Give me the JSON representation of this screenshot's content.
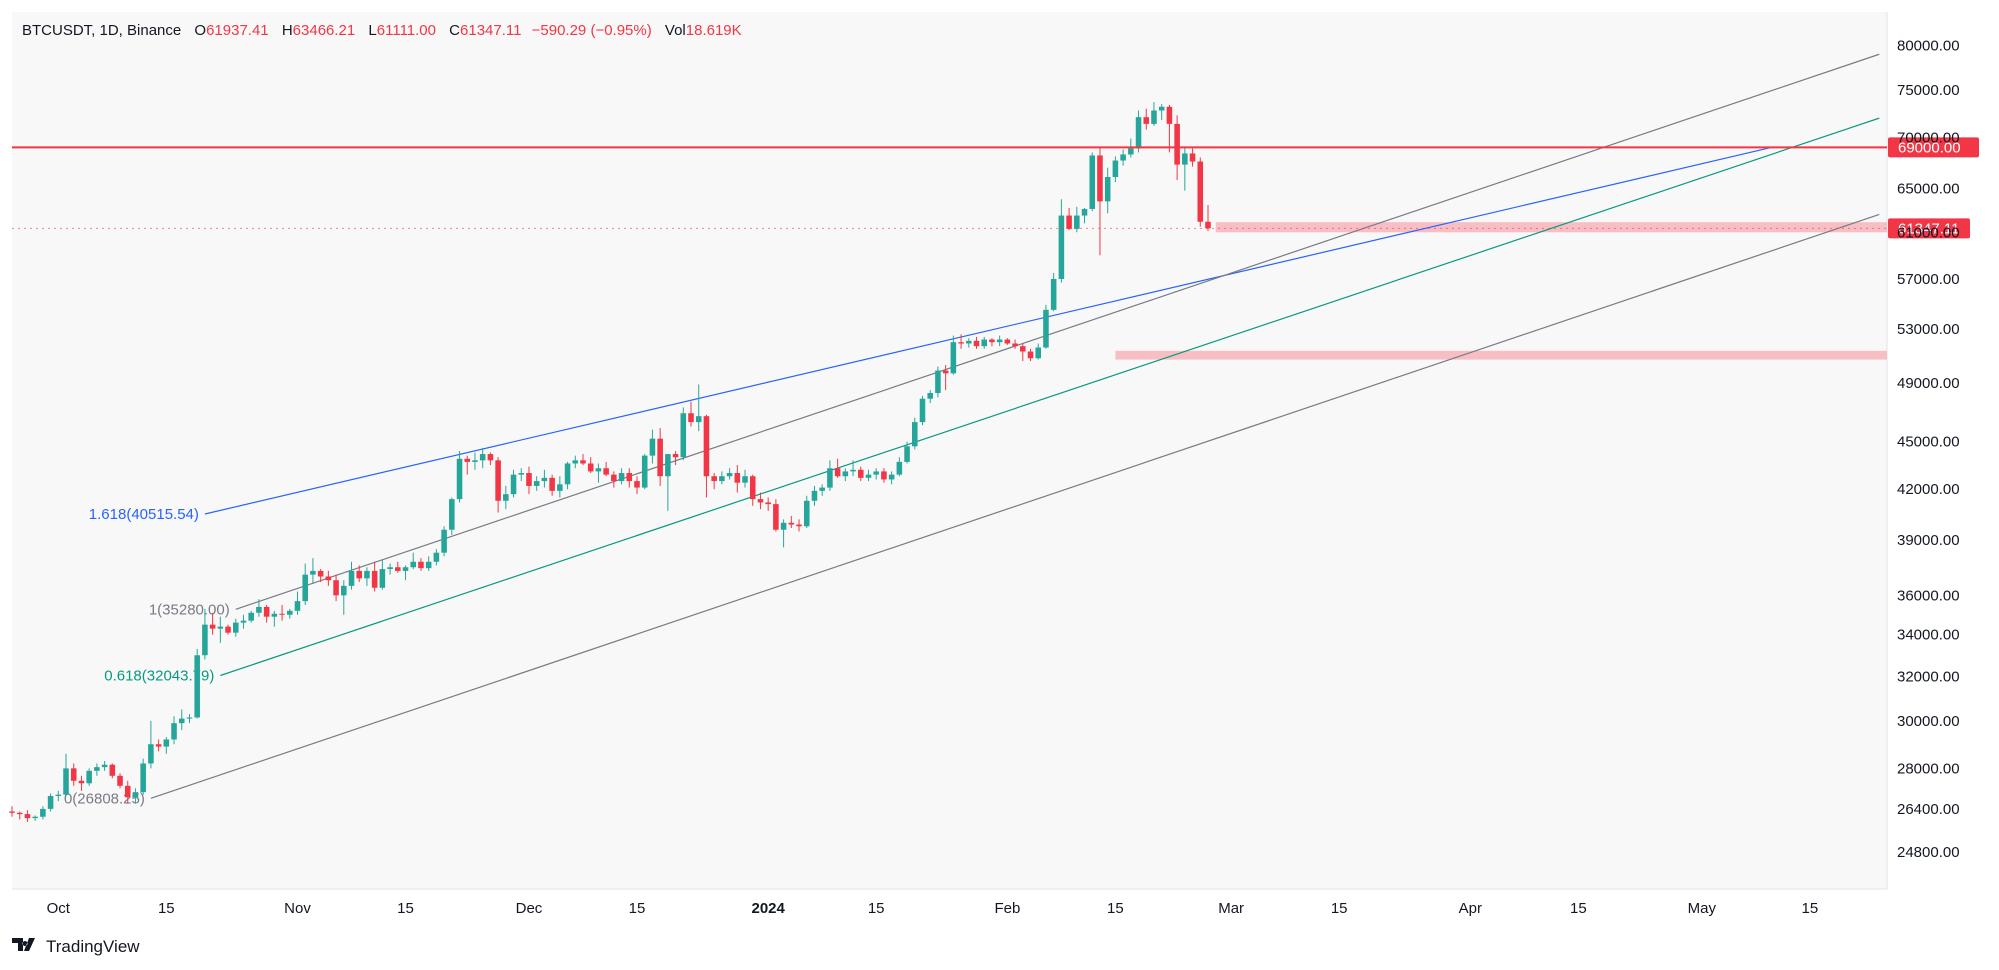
{
  "legend": {
    "symbol": "BTCUSDT, 1D, Binance",
    "open_label": "O",
    "open": "61937.41",
    "high_label": "H",
    "high": "63466.21",
    "low_label": "L",
    "low": "61111.00",
    "close_label": "C",
    "close": "61347.11",
    "change": "−590.29 (−0.95%)",
    "vol_label": "Vol",
    "vol": "18.619K"
  },
  "brand": {
    "name": "TradingView"
  },
  "colors": {
    "up": "#26a69a",
    "down": "#f23645",
    "fib_blue": "#2962ff",
    "fib_green": "#089981",
    "fib_gray": "#787b86"
  },
  "chart_data": {
    "type": "candlestick",
    "scale": "log",
    "ylim": [
      23500,
      84000
    ],
    "xlim": [
      "2023-09-25",
      "2024-05-25"
    ],
    "y_ticks": [
      "80000.00",
      "75000.00",
      "70000.00",
      "65000.00",
      "61000.00",
      "57000.00",
      "53000.00",
      "49000.00",
      "45000.00",
      "42000.00",
      "39000.00",
      "36000.00",
      "34000.00",
      "32000.00",
      "30000.00",
      "28000.00",
      "26400.00",
      "24800.00"
    ],
    "x_ticks": [
      {
        "date": "2023-10-01",
        "label": "Oct",
        "bold": false
      },
      {
        "date": "2023-10-15",
        "label": "15",
        "bold": false
      },
      {
        "date": "2023-11-01",
        "label": "Nov",
        "bold": false
      },
      {
        "date": "2023-11-15",
        "label": "15",
        "bold": false
      },
      {
        "date": "2023-12-01",
        "label": "Dec",
        "bold": false
      },
      {
        "date": "2023-12-15",
        "label": "15",
        "bold": false
      },
      {
        "date": "2024-01-01",
        "label": "2024",
        "bold": true
      },
      {
        "date": "2024-01-15",
        "label": "15",
        "bold": false
      },
      {
        "date": "2024-02-01",
        "label": "Feb",
        "bold": false
      },
      {
        "date": "2024-02-15",
        "label": "15",
        "bold": false
      },
      {
        "date": "2024-03-01",
        "label": "Mar",
        "bold": false
      },
      {
        "date": "2024-03-15",
        "label": "15",
        "bold": false
      },
      {
        "date": "2024-04-01",
        "label": "Apr",
        "bold": false
      },
      {
        "date": "2024-04-15",
        "label": "15",
        "bold": false
      },
      {
        "date": "2024-05-01",
        "label": "May",
        "bold": false
      },
      {
        "date": "2024-05-15",
        "label": "15",
        "bold": false
      }
    ],
    "candles_start": "2023-09-25",
    "candles": [
      [
        26300,
        26500,
        26100,
        26250
      ],
      [
        26250,
        26300,
        26000,
        26200
      ],
      [
        26200,
        26350,
        25900,
        26050
      ],
      [
        26050,
        26150,
        25950,
        26100
      ],
      [
        26100,
        26500,
        26000,
        26400
      ],
      [
        26400,
        27000,
        26300,
        26900
      ],
      [
        26900,
        27100,
        26700,
        26950
      ],
      [
        26950,
        28600,
        26900,
        28000
      ],
      [
        28000,
        28200,
        27300,
        27500
      ],
      [
        27500,
        27700,
        27100,
        27400
      ],
      [
        27400,
        28000,
        27300,
        27900
      ],
      [
        27900,
        28200,
        27700,
        28050
      ],
      [
        28050,
        28300,
        27900,
        28150
      ],
      [
        28150,
        28200,
        27600,
        27700
      ],
      [
        27700,
        27800,
        27200,
        27300
      ],
      [
        27300,
        27500,
        26600,
        26850
      ],
      [
        26850,
        27200,
        26600,
        27050
      ],
      [
        27050,
        28400,
        26950,
        28200
      ],
      [
        28200,
        30000,
        28000,
        29000
      ],
      [
        29000,
        29200,
        28700,
        28900
      ],
      [
        28900,
        29300,
        28600,
        29200
      ],
      [
        29200,
        30200,
        29000,
        29900
      ],
      [
        29900,
        30500,
        29600,
        30100
      ],
      [
        30100,
        30300,
        29900,
        30150
      ],
      [
        30150,
        33300,
        30100,
        33000
      ],
      [
        33000,
        35300,
        32800,
        34500
      ],
      [
        34500,
        35100,
        34000,
        34300
      ],
      [
        34300,
        34900,
        33600,
        34400
      ],
      [
        34400,
        34500,
        34000,
        34100
      ],
      [
        34100,
        34800,
        33900,
        34600
      ],
      [
        34600,
        35000,
        34300,
        34700
      ],
      [
        34700,
        35200,
        34600,
        35100
      ],
      [
        35100,
        35800,
        34900,
        35400
      ],
      [
        35400,
        35500,
        34600,
        34900
      ],
      [
        34900,
        35200,
        34400,
        35050
      ],
      [
        35050,
        35500,
        34700,
        35000
      ],
      [
        35000,
        35300,
        34800,
        35200
      ],
      [
        35200,
        36200,
        35000,
        35700
      ],
      [
        35700,
        37700,
        35500,
        37100
      ],
      [
        37100,
        38000,
        36600,
        37300
      ],
      [
        37300,
        37400,
        36700,
        37000
      ],
      [
        37000,
        37300,
        36500,
        36800
      ],
      [
        36800,
        37100,
        35700,
        36000
      ],
      [
        36000,
        36800,
        35000,
        36500
      ],
      [
        36500,
        37800,
        36300,
        37300
      ],
      [
        37300,
        37600,
        36700,
        36900
      ],
      [
        36900,
        37500,
        36500,
        37300
      ],
      [
        37300,
        37800,
        36200,
        36400
      ],
      [
        36400,
        37900,
        36300,
        37400
      ],
      [
        37400,
        37700,
        37100,
        37500
      ],
      [
        37500,
        37800,
        37200,
        37300
      ],
      [
        37300,
        37600,
        36800,
        37500
      ],
      [
        37500,
        38300,
        37400,
        37800
      ],
      [
        37800,
        38000,
        37300,
        37450
      ],
      [
        37450,
        38100,
        37300,
        37800
      ],
      [
        37800,
        38500,
        37600,
        38300
      ],
      [
        38300,
        39800,
        38100,
        39600
      ],
      [
        39600,
        41500,
        39300,
        41400
      ],
      [
        41400,
        44400,
        41200,
        43900
      ],
      [
        43900,
        44100,
        42900,
        43700
      ],
      [
        43700,
        44300,
        43200,
        43800
      ],
      [
        43800,
        44600,
        43300,
        44200
      ],
      [
        44200,
        44300,
        43500,
        43800
      ],
      [
        43800,
        44000,
        40600,
        41300
      ],
      [
        41300,
        42200,
        40800,
        41700
      ],
      [
        41700,
        43200,
        41500,
        42900
      ],
      [
        42900,
        43300,
        42500,
        43000
      ],
      [
        43000,
        43400,
        41700,
        42200
      ],
      [
        42200,
        42800,
        41900,
        42500
      ],
      [
        42500,
        43200,
        42100,
        42700
      ],
      [
        42700,
        42900,
        41600,
        41900
      ],
      [
        41900,
        42800,
        41500,
        42300
      ],
      [
        42300,
        43700,
        42000,
        43600
      ],
      [
        43600,
        44100,
        43300,
        43800
      ],
      [
        43800,
        44200,
        43500,
        43600
      ],
      [
        43600,
        44000,
        43000,
        43100
      ],
      [
        43100,
        43600,
        42400,
        43300
      ],
      [
        43300,
        43700,
        42800,
        42900
      ],
      [
        42900,
        43100,
        42100,
        42500
      ],
      [
        42500,
        43300,
        42300,
        43000
      ],
      [
        43000,
        43300,
        42100,
        42500
      ],
      [
        42500,
        42800,
        41700,
        42100
      ],
      [
        42100,
        44200,
        42000,
        44100
      ],
      [
        44100,
        45800,
        43600,
        45200
      ],
      [
        45200,
        45900,
        42200,
        42800
      ],
      [
        42800,
        44200,
        40700,
        44200
      ],
      [
        44200,
        44400,
        43500,
        44000
      ],
      [
        44000,
        47300,
        43800,
        46900
      ],
      [
        46900,
        47700,
        46000,
        46300
      ],
      [
        46300,
        48900,
        45700,
        46700
      ],
      [
        46700,
        46800,
        41500,
        42800
      ],
      [
        42800,
        43000,
        42000,
        42500
      ],
      [
        42500,
        43100,
        42300,
        42800
      ],
      [
        42800,
        43300,
        42600,
        43000
      ],
      [
        43000,
        43500,
        41800,
        42400
      ],
      [
        42400,
        43200,
        42100,
        42800
      ],
      [
        42800,
        42900,
        41000,
        41400
      ],
      [
        41400,
        41800,
        40800,
        41200
      ],
      [
        41200,
        41500,
        40700,
        41100
      ],
      [
        41100,
        41400,
        39500,
        39600
      ],
      [
        39600,
        40200,
        38600,
        40000
      ],
      [
        40000,
        40400,
        39700,
        39900
      ],
      [
        39900,
        40200,
        39500,
        39800
      ],
      [
        39800,
        41600,
        39700,
        41300
      ],
      [
        41300,
        42200,
        41000,
        41900
      ],
      [
        41900,
        42300,
        41600,
        42100
      ],
      [
        42100,
        43800,
        41900,
        43300
      ],
      [
        43300,
        43900,
        42700,
        42800
      ],
      [
        42800,
        43300,
        42500,
        43100
      ],
      [
        43100,
        43800,
        42800,
        43200
      ],
      [
        43200,
        43400,
        42500,
        42700
      ],
      [
        42700,
        43200,
        42500,
        42900
      ],
      [
        42900,
        43300,
        42600,
        43100
      ],
      [
        43100,
        43300,
        42400,
        42600
      ],
      [
        42600,
        43100,
        42300,
        42900
      ],
      [
        42900,
        44000,
        42800,
        43700
      ],
      [
        43700,
        45000,
        43600,
        44700
      ],
      [
        44700,
        46600,
        44500,
        46300
      ],
      [
        46300,
        48100,
        46100,
        47900
      ],
      [
        47900,
        48500,
        47600,
        48300
      ],
      [
        48300,
        50200,
        48000,
        49900
      ],
      [
        49900,
        50300,
        48500,
        49700
      ],
      [
        49700,
        52500,
        49600,
        52000
      ],
      [
        52000,
        52600,
        51500,
        51900
      ],
      [
        51900,
        52300,
        51600,
        52100
      ],
      [
        52100,
        52400,
        51500,
        51700
      ],
      [
        51700,
        52400,
        51500,
        52200
      ],
      [
        52200,
        52300,
        51700,
        52000
      ],
      [
        52000,
        52500,
        51700,
        52200
      ],
      [
        52200,
        52300,
        51800,
        51900
      ],
      [
        51900,
        52200,
        51500,
        51700
      ],
      [
        51700,
        51900,
        50600,
        51300
      ],
      [
        51300,
        51500,
        50600,
        50800
      ],
      [
        50800,
        51900,
        50700,
        51600
      ],
      [
        51600,
        54900,
        51500,
        54500
      ],
      [
        54500,
        57500,
        54400,
        57000
      ],
      [
        57000,
        64000,
        56700,
        62500
      ],
      [
        62500,
        63200,
        61200,
        61300
      ],
      [
        61300,
        63300,
        61000,
        62500
      ],
      [
        62500,
        63200,
        61800,
        63100
      ],
      [
        63100,
        68500,
        62900,
        68200
      ],
      [
        68200,
        69000,
        59000,
        63800
      ],
      [
        63800,
        67000,
        62700,
        66100
      ],
      [
        66100,
        68100,
        65600,
        67700
      ],
      [
        67700,
        68800,
        67200,
        68300
      ],
      [
        68300,
        69900,
        68000,
        68900
      ],
      [
        68900,
        72800,
        68500,
        72100
      ],
      [
        72100,
        73000,
        70800,
        71400
      ],
      [
        71400,
        73700,
        71200,
        72800
      ],
      [
        72800,
        73500,
        71800,
        73200
      ],
      [
        73200,
        73400,
        68500,
        71400
      ],
      [
        71400,
        72300,
        65800,
        67300
      ],
      [
        67300,
        69000,
        64800,
        68400
      ],
      [
        68400,
        68900,
        67100,
        67600
      ],
      [
        67600,
        68000,
        61500,
        61937
      ],
      [
        61937,
        63466,
        61111,
        61347
      ]
    ],
    "lines": [
      {
        "kind": "fib_extension",
        "label": "1.618(40515.54)",
        "start": [
          "2023-10-20",
          40515.54
        ],
        "end": [
          "2024-05-10",
          69000
        ],
        "color": "blue"
      },
      {
        "kind": "fib_level",
        "label": "1(35280.00)",
        "start": [
          "2023-10-24",
          35280.0
        ],
        "end": [
          "2024-05-24",
          79000
        ],
        "color": "gray"
      },
      {
        "kind": "fib_level",
        "label": "0.618(32043.79)",
        "start": [
          "2023-10-22",
          32043.79
        ],
        "end": [
          "2024-05-24",
          72000
        ],
        "color": "green"
      },
      {
        "kind": "fib_level",
        "label": "0(26808.25)",
        "start": [
          "2023-10-13",
          26808.25
        ],
        "end": [
          "2024-05-24",
          62600
        ],
        "color": "gray"
      }
    ],
    "resistance": {
      "price": 69000,
      "label": "69000.00"
    },
    "last_price": {
      "price": 61347.11,
      "label": "61347.11"
    },
    "zones": [
      {
        "from": "2024-02-28",
        "low": 61000,
        "high": 61900
      },
      {
        "from": "2024-02-15",
        "low": 50700,
        "high": 51350
      }
    ]
  }
}
